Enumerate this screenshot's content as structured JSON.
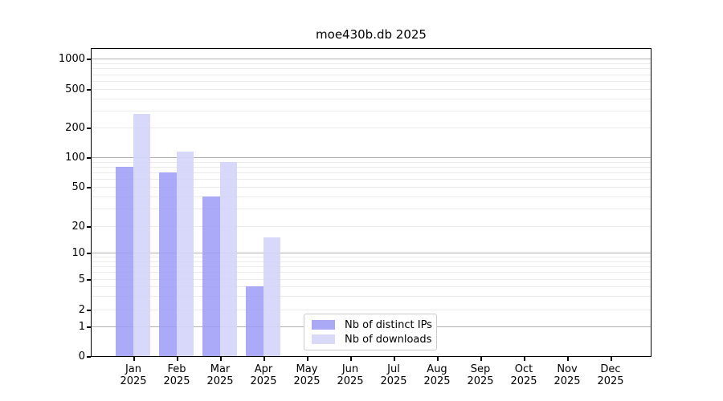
{
  "chart_data": {
    "type": "bar",
    "title": "moe430b.db 2025",
    "x_axis": {
      "months": [
        "Jan",
        "Feb",
        "Mar",
        "Apr",
        "May",
        "Jun",
        "Jul",
        "Aug",
        "Sep",
        "Oct",
        "Nov",
        "Dec"
      ],
      "year": "2025"
    },
    "y_axis": {
      "scale": "log-with-zero-floor",
      "tick_values": [
        1000,
        500,
        200,
        100,
        50,
        20,
        10,
        5,
        2,
        1,
        0
      ],
      "tick_labels": [
        "1000",
        "500",
        "200",
        "100",
        "50",
        "20",
        "10",
        "5",
        "2",
        "1",
        "0"
      ],
      "ylim": [
        0,
        1200
      ]
    },
    "series": [
      {
        "name": "Nb of distinct IPs",
        "color": "#a9a9f6",
        "values": [
          80,
          70,
          40,
          4,
          null,
          null,
          null,
          null,
          null,
          null,
          null,
          null
        ]
      },
      {
        "name": "Nb of downloads",
        "color": "#d9d9f8",
        "values": [
          275,
          115,
          90,
          15,
          null,
          null,
          null,
          null,
          null,
          null,
          null,
          null
        ]
      }
    ],
    "grid": true,
    "legend_position": "lower center"
  },
  "colors": {
    "bar_ips": "rgba(155,155,247,0.85)",
    "bar_downloads": "rgba(212,212,249,0.9)",
    "grid_major": "#b2b2b2",
    "grid_minor": "#ebebeb",
    "spine": "#000000",
    "legend_border": "#cccccc"
  }
}
